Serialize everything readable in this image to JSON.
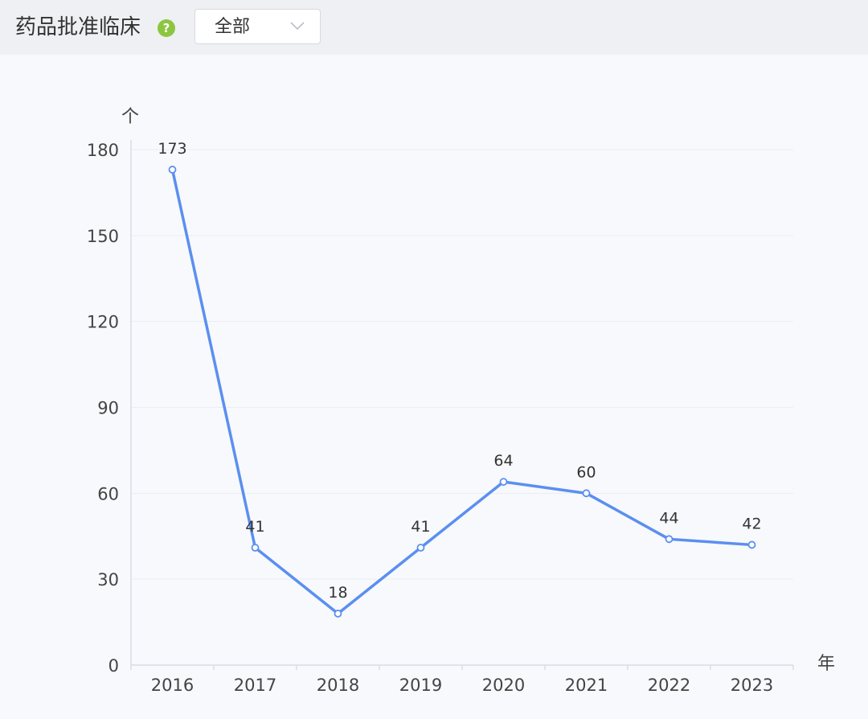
{
  "header": {
    "title": "药品批准临床",
    "help_icon_glyph": "?",
    "help_icon": "question-circle-icon",
    "filter": {
      "selected": "全部",
      "icon": "chevron-down-icon"
    }
  },
  "chart_data": {
    "type": "line",
    "title": "",
    "xlabel": "年",
    "ylabel": "个",
    "categories": [
      "2016",
      "2017",
      "2018",
      "2019",
      "2020",
      "2021",
      "2022",
      "2023"
    ],
    "series": [
      {
        "values": [
          173,
          41,
          18,
          41,
          64,
          60,
          44,
          42
        ]
      }
    ],
    "ylim": [
      0,
      180
    ],
    "yticks": [
      0,
      30,
      60,
      90,
      120,
      150,
      180
    ],
    "data_labels": true,
    "grid": true,
    "legend": "none",
    "colors": {
      "line": "#5b8ff0",
      "point_fill": "#ffffff",
      "grid": "#eaedf2",
      "axis": "#d3d7de",
      "tick_text": "#444444"
    }
  }
}
